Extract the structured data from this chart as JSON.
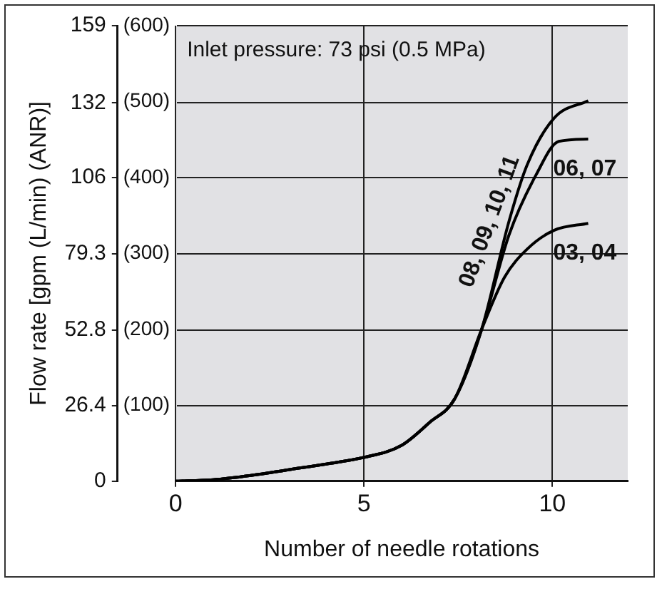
{
  "chart_data": {
    "type": "line",
    "xlabel": "Number of needle rotations",
    "ylabel": "Flow rate [gpm (L/min) (ANR)]",
    "annotations": [
      "Inlet pressure: 73 psi (0.5 MPa)"
    ],
    "xlim": [
      0,
      12
    ],
    "xticks": [
      0,
      5,
      10
    ],
    "ylim": [
      0,
      159
    ],
    "yticks": [
      0,
      26.4,
      52.8,
      79.3,
      106,
      132,
      159
    ],
    "y2lim": [
      0,
      600
    ],
    "y2ticks": [
      {
        "value": 100,
        "label": "(100)"
      },
      {
        "value": 200,
        "label": "(200)"
      },
      {
        "value": 300,
        "label": "(300)"
      },
      {
        "value": 400,
        "label": "(400)"
      },
      {
        "value": 500,
        "label": "(500)"
      },
      {
        "value": 600,
        "label": "(600)"
      }
    ],
    "grid": true,
    "legend": false,
    "marker": "none",
    "line_style": "solid",
    "series": [
      {
        "name": "08, 09, 10, 11",
        "color": "#000000",
        "x": [
          0,
          1,
          2,
          3,
          4,
          5,
          6,
          6.75,
          7.41,
          8.13,
          8.85,
          9.33,
          10.05,
          10.95
        ],
        "values": [
          0,
          0.5,
          2,
          4,
          6,
          8.3,
          12.5,
          20.6,
          28.8,
          53.3,
          90.8,
          110.4,
          126.8,
          132.8
        ]
      },
      {
        "name": "06, 07",
        "color": "#000000",
        "x": [
          0,
          1,
          2,
          3,
          4,
          5,
          6,
          6.75,
          7.41,
          8.13,
          8.85,
          9.57,
          10.17,
          10.95
        ],
        "values": [
          0,
          0.5,
          2,
          4,
          6,
          8.3,
          12.5,
          20.6,
          28.8,
          53.3,
          86,
          107,
          118.6,
          119.4
        ]
      },
      {
        "name": "03, 04",
        "color": "#000000",
        "x": [
          0,
          1,
          2,
          3,
          4,
          5,
          6,
          6.75,
          7.41,
          8.13,
          8.73,
          9.33,
          10.05,
          10.95
        ],
        "values": [
          0,
          0.5,
          2,
          4,
          6,
          8.3,
          12.5,
          20.6,
          28.8,
          53.3,
          71.2,
          81,
          87.6,
          90
        ]
      }
    ]
  }
}
